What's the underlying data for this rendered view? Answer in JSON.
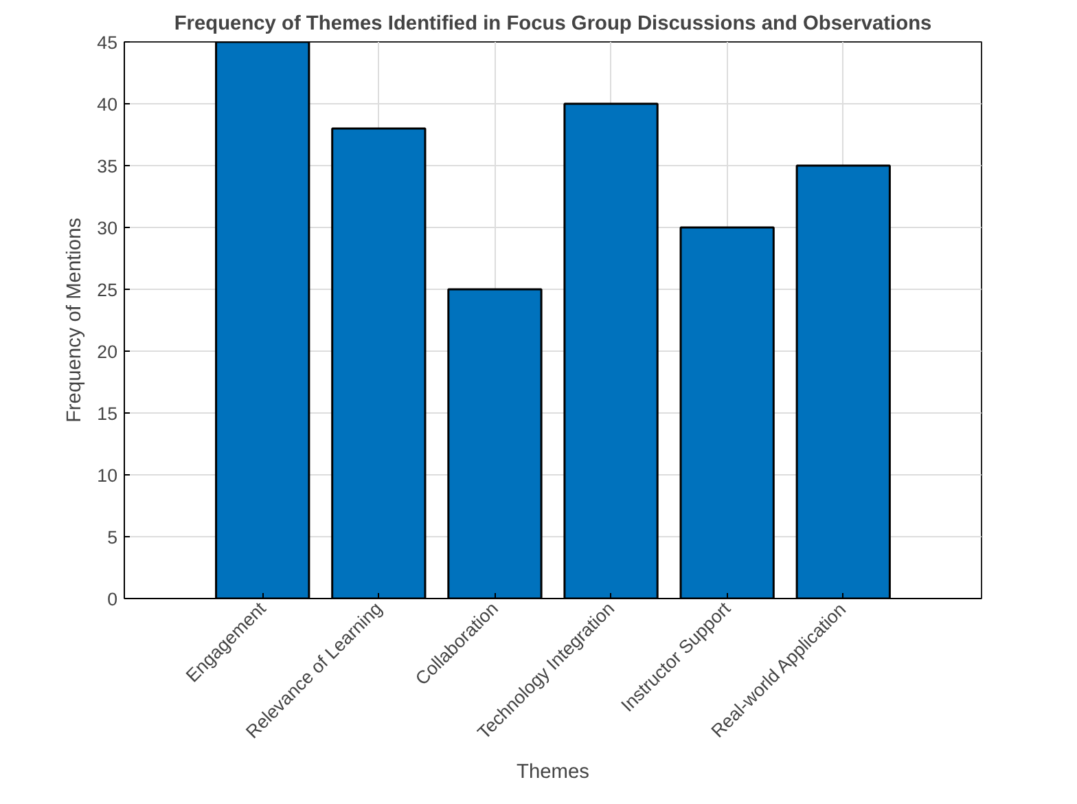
{
  "chart_data": {
    "type": "bar",
    "title": "Frequency of Themes Identified in Focus Group Discussions and Observations",
    "xlabel": "Themes",
    "ylabel": "Frequency of Mentions",
    "categories": [
      "Engagement",
      "Relevance of Learning",
      "Collaboration",
      "Technology Integration",
      "Instructor Support",
      "Real-world Application"
    ],
    "values": [
      45,
      38,
      25,
      40,
      30,
      35
    ],
    "color": "#0072bd",
    "ylim": [
      0,
      45
    ],
    "yticks": [
      0,
      5,
      10,
      15,
      20,
      25,
      30,
      35,
      40,
      45
    ],
    "grid": true
  }
}
